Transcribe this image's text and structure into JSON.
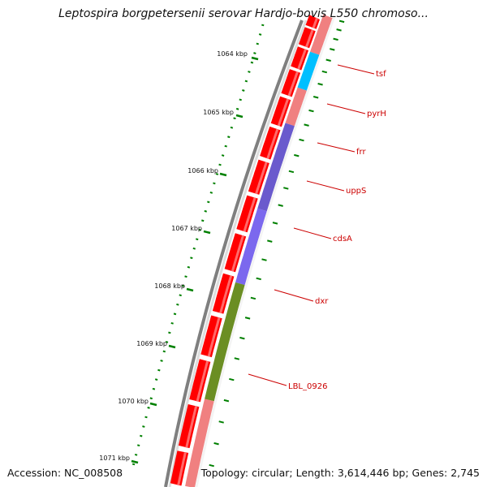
{
  "title": "Leptospira borgpetersenii serovar Hardjo-bovis L550 chromoso...",
  "footer": {
    "accession": "Accession: NC_008508",
    "summary": "Topology: circular; Length: 3,614,446 bp; Genes: 2,745"
  },
  "colors": {
    "backbone": "#7f7f7f",
    "cds": "#ff0000",
    "gene_light": "#f08080",
    "ticks": "#008000",
    "labels": "#cc0000"
  },
  "kbp_ticks": [
    "1064 kbp",
    "1065 kbp",
    "1066 kbp",
    "1067 kbp",
    "1068 kbp",
    "1069 kbp",
    "1070 kbp",
    "1071 kbp"
  ],
  "genes": [
    {
      "label": "tsf",
      "color": "#f08080"
    },
    {
      "label": "pyrH",
      "color": "#00bfff"
    },
    {
      "label": "frr",
      "color": "#f08080"
    },
    {
      "label": "uppS",
      "color": "#6a5acd"
    },
    {
      "label": "cdsA",
      "color": "#6a5acd"
    },
    {
      "label": "dxr",
      "color": "#7b68ee"
    },
    {
      "label": "LBL_0926",
      "color": "#6b8e23"
    }
  ]
}
